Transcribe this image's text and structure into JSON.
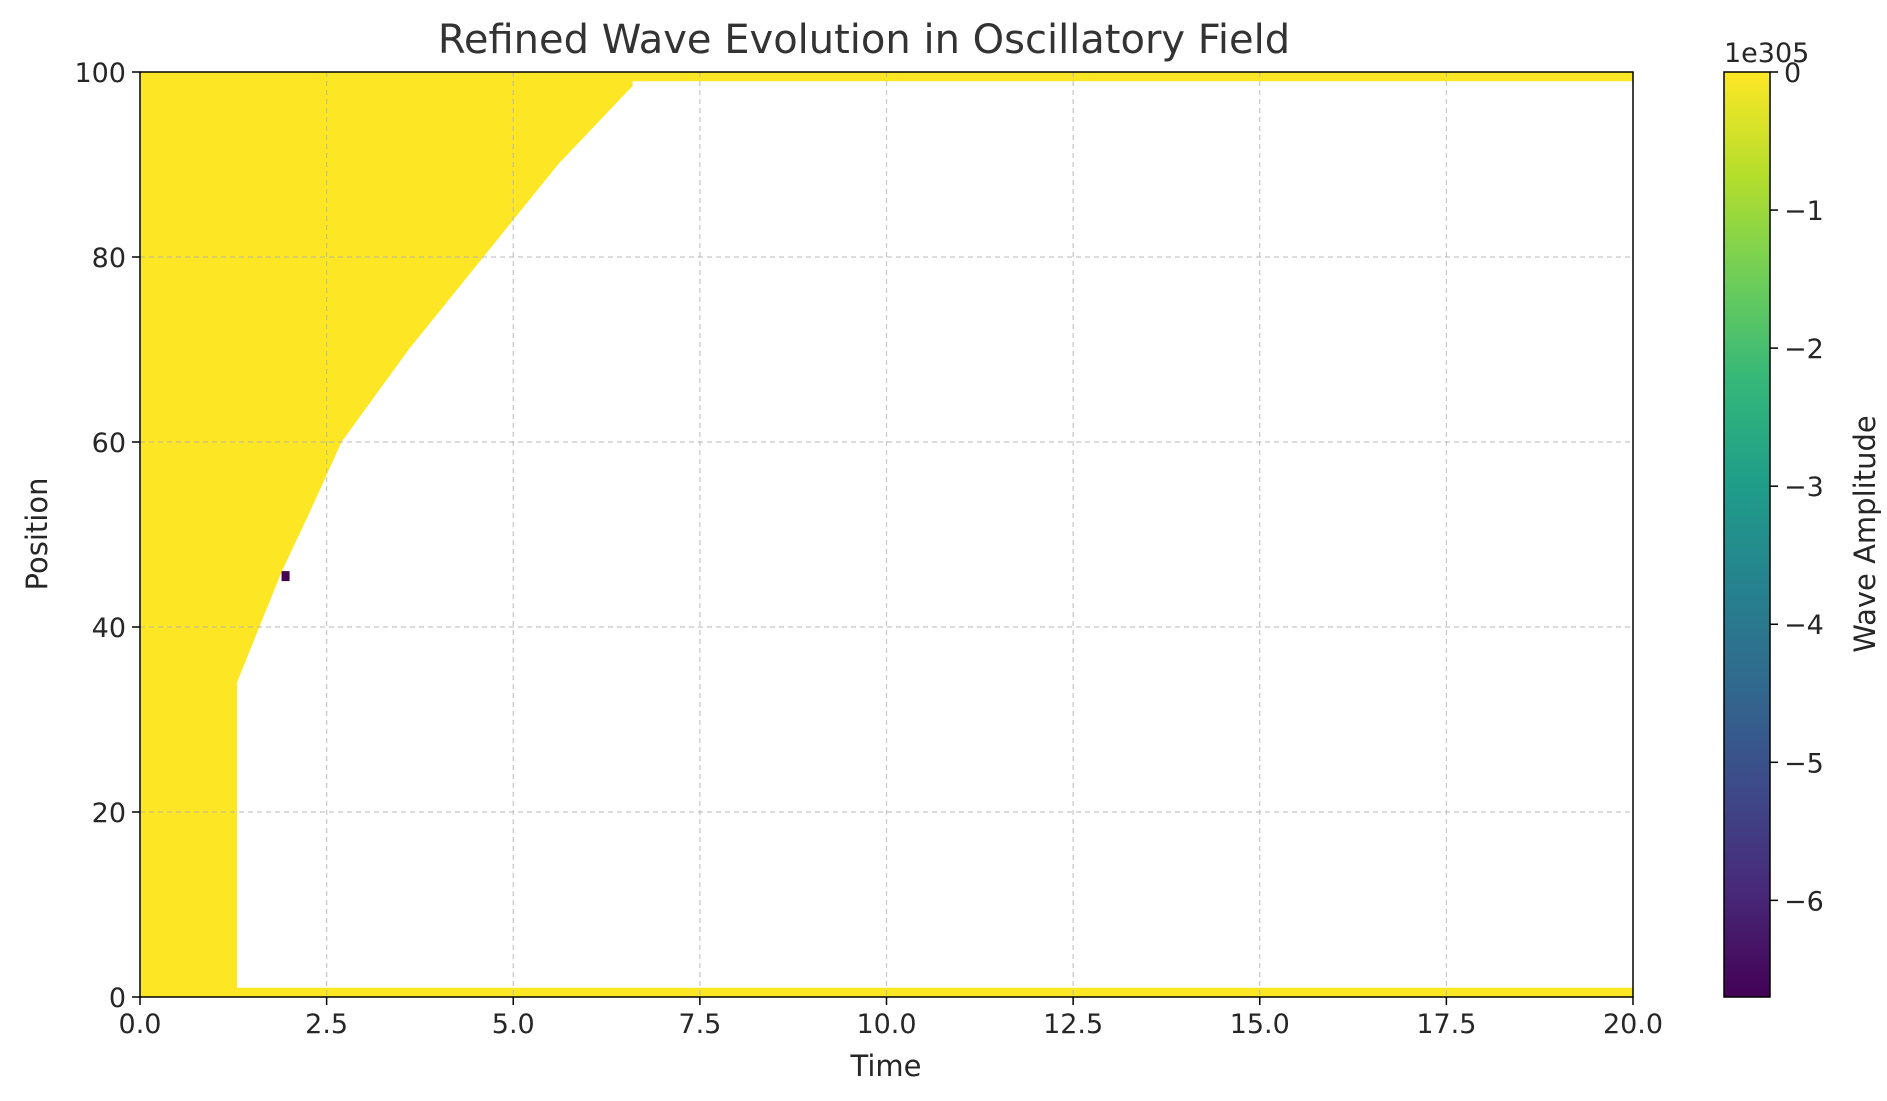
{
  "chart_data": {
    "type": "heatmap",
    "title": "Refined Wave Evolution in Oscillatory Field",
    "xlabel": "Time",
    "ylabel": "Position",
    "xlim": [
      0,
      20
    ],
    "ylim": [
      0,
      100
    ],
    "x_ticks": [
      "0.0",
      "2.5",
      "5.0",
      "7.5",
      "10.0",
      "12.5",
      "15.0",
      "17.5",
      "20.0"
    ],
    "y_ticks": [
      "0",
      "20",
      "40",
      "60",
      "80",
      "100"
    ],
    "grid": true,
    "colormap": "viridis",
    "colormap_stops": [
      "#440154",
      "#482878",
      "#3e4989",
      "#31688e",
      "#26828e",
      "#1f9e89",
      "#35b779",
      "#6ece58",
      "#b5de2b",
      "#fde725"
    ],
    "filled_color": "#fde725",
    "outlier_color": "#440154",
    "colorbar": {
      "label": "Wave Amplitude",
      "offset_text": "1e305",
      "range": [
        -6.7,
        0
      ],
      "ticks": [
        "0",
        "−1",
        "−2",
        "−3",
        "−4",
        "−5",
        "−6"
      ]
    },
    "regions": {
      "filled_near_zero": "0 ≤ time ≤ boundary(position); plus rows at position ≈ 0 and position ≈ 100 across all time",
      "undefined": "white area to the right of the boundary"
    },
    "boundary": [
      {
        "position": 0,
        "time": 1.3
      },
      {
        "position": 34,
        "time": 1.3
      },
      {
        "position": 40,
        "time": 1.6
      },
      {
        "position": 46,
        "time": 1.9
      },
      {
        "position": 52,
        "time": 2.25
      },
      {
        "position": 60,
        "time": 2.7
      },
      {
        "position": 70,
        "time": 3.6
      },
      {
        "position": 80,
        "time": 4.6
      },
      {
        "position": 90,
        "time": 5.6
      },
      {
        "position": 98.5,
        "time": 6.6
      }
    ],
    "bottom_row_max_position": 1,
    "top_row_min_position": 99,
    "outlier": {
      "time": 1.95,
      "position": 45.5,
      "amplitude": -6.7
    }
  }
}
